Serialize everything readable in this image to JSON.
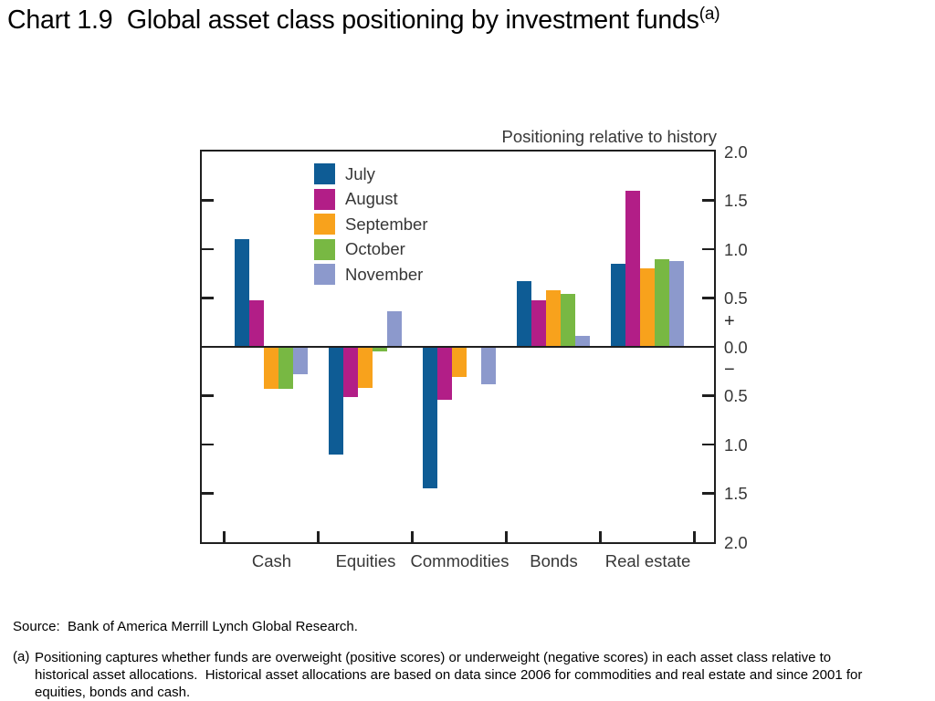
{
  "title": {
    "text": "Chart 1.9  Global asset class positioning by investment funds",
    "superscript": "(a)"
  },
  "chart_data": {
    "type": "bar",
    "title": "Positioning relative to history",
    "categories": [
      "Cash",
      "Equities",
      "Commodities",
      "Bonds",
      "Real estate"
    ],
    "series": [
      {
        "name": "July",
        "color": "#0E5C95",
        "values": [
          1.1,
          -1.1,
          -1.45,
          0.67,
          0.85
        ]
      },
      {
        "name": "August",
        "color": "#B21E87",
        "values": [
          0.48,
          -0.51,
          -0.54,
          0.48,
          1.6
        ]
      },
      {
        "name": "September",
        "color": "#F8A21C",
        "values": [
          -0.43,
          -0.42,
          -0.31,
          0.58,
          0.8
        ]
      },
      {
        "name": "October",
        "color": "#78B843",
        "values": [
          -0.43,
          -0.05,
          0.0,
          0.54,
          0.9
        ]
      },
      {
        "name": "November",
        "color": "#8C99CC",
        "values": [
          -0.28,
          0.36,
          -0.38,
          0.11,
          0.88
        ]
      }
    ],
    "ylim": [
      -2,
      2
    ],
    "y_tick_step": 0.5,
    "right_axis_labels": [
      "2.0",
      "1.5",
      "1.0",
      "0.5",
      "0.0",
      "0.5",
      "1.0",
      "1.5",
      "2.0"
    ],
    "plus_sign": "+",
    "minus_sign": "−",
    "legend_position": "top-left-inside",
    "legend_entries": [
      "July",
      "August",
      "September",
      "October",
      "November"
    ],
    "grid": false,
    "axis_color": "#1f1f1f"
  },
  "footer": {
    "source": "Source:  Bank of America Merrill Lynch Global Research.",
    "footnote_marker": "(a)",
    "footnote": "Positioning captures whether funds are overweight (positive scores) or underweight (negative scores) in each asset class relative to historical asset allocations.  Historical asset allocations are based on data since 2006 for commodities and real estate and since 2001 for equities, bonds and cash."
  }
}
